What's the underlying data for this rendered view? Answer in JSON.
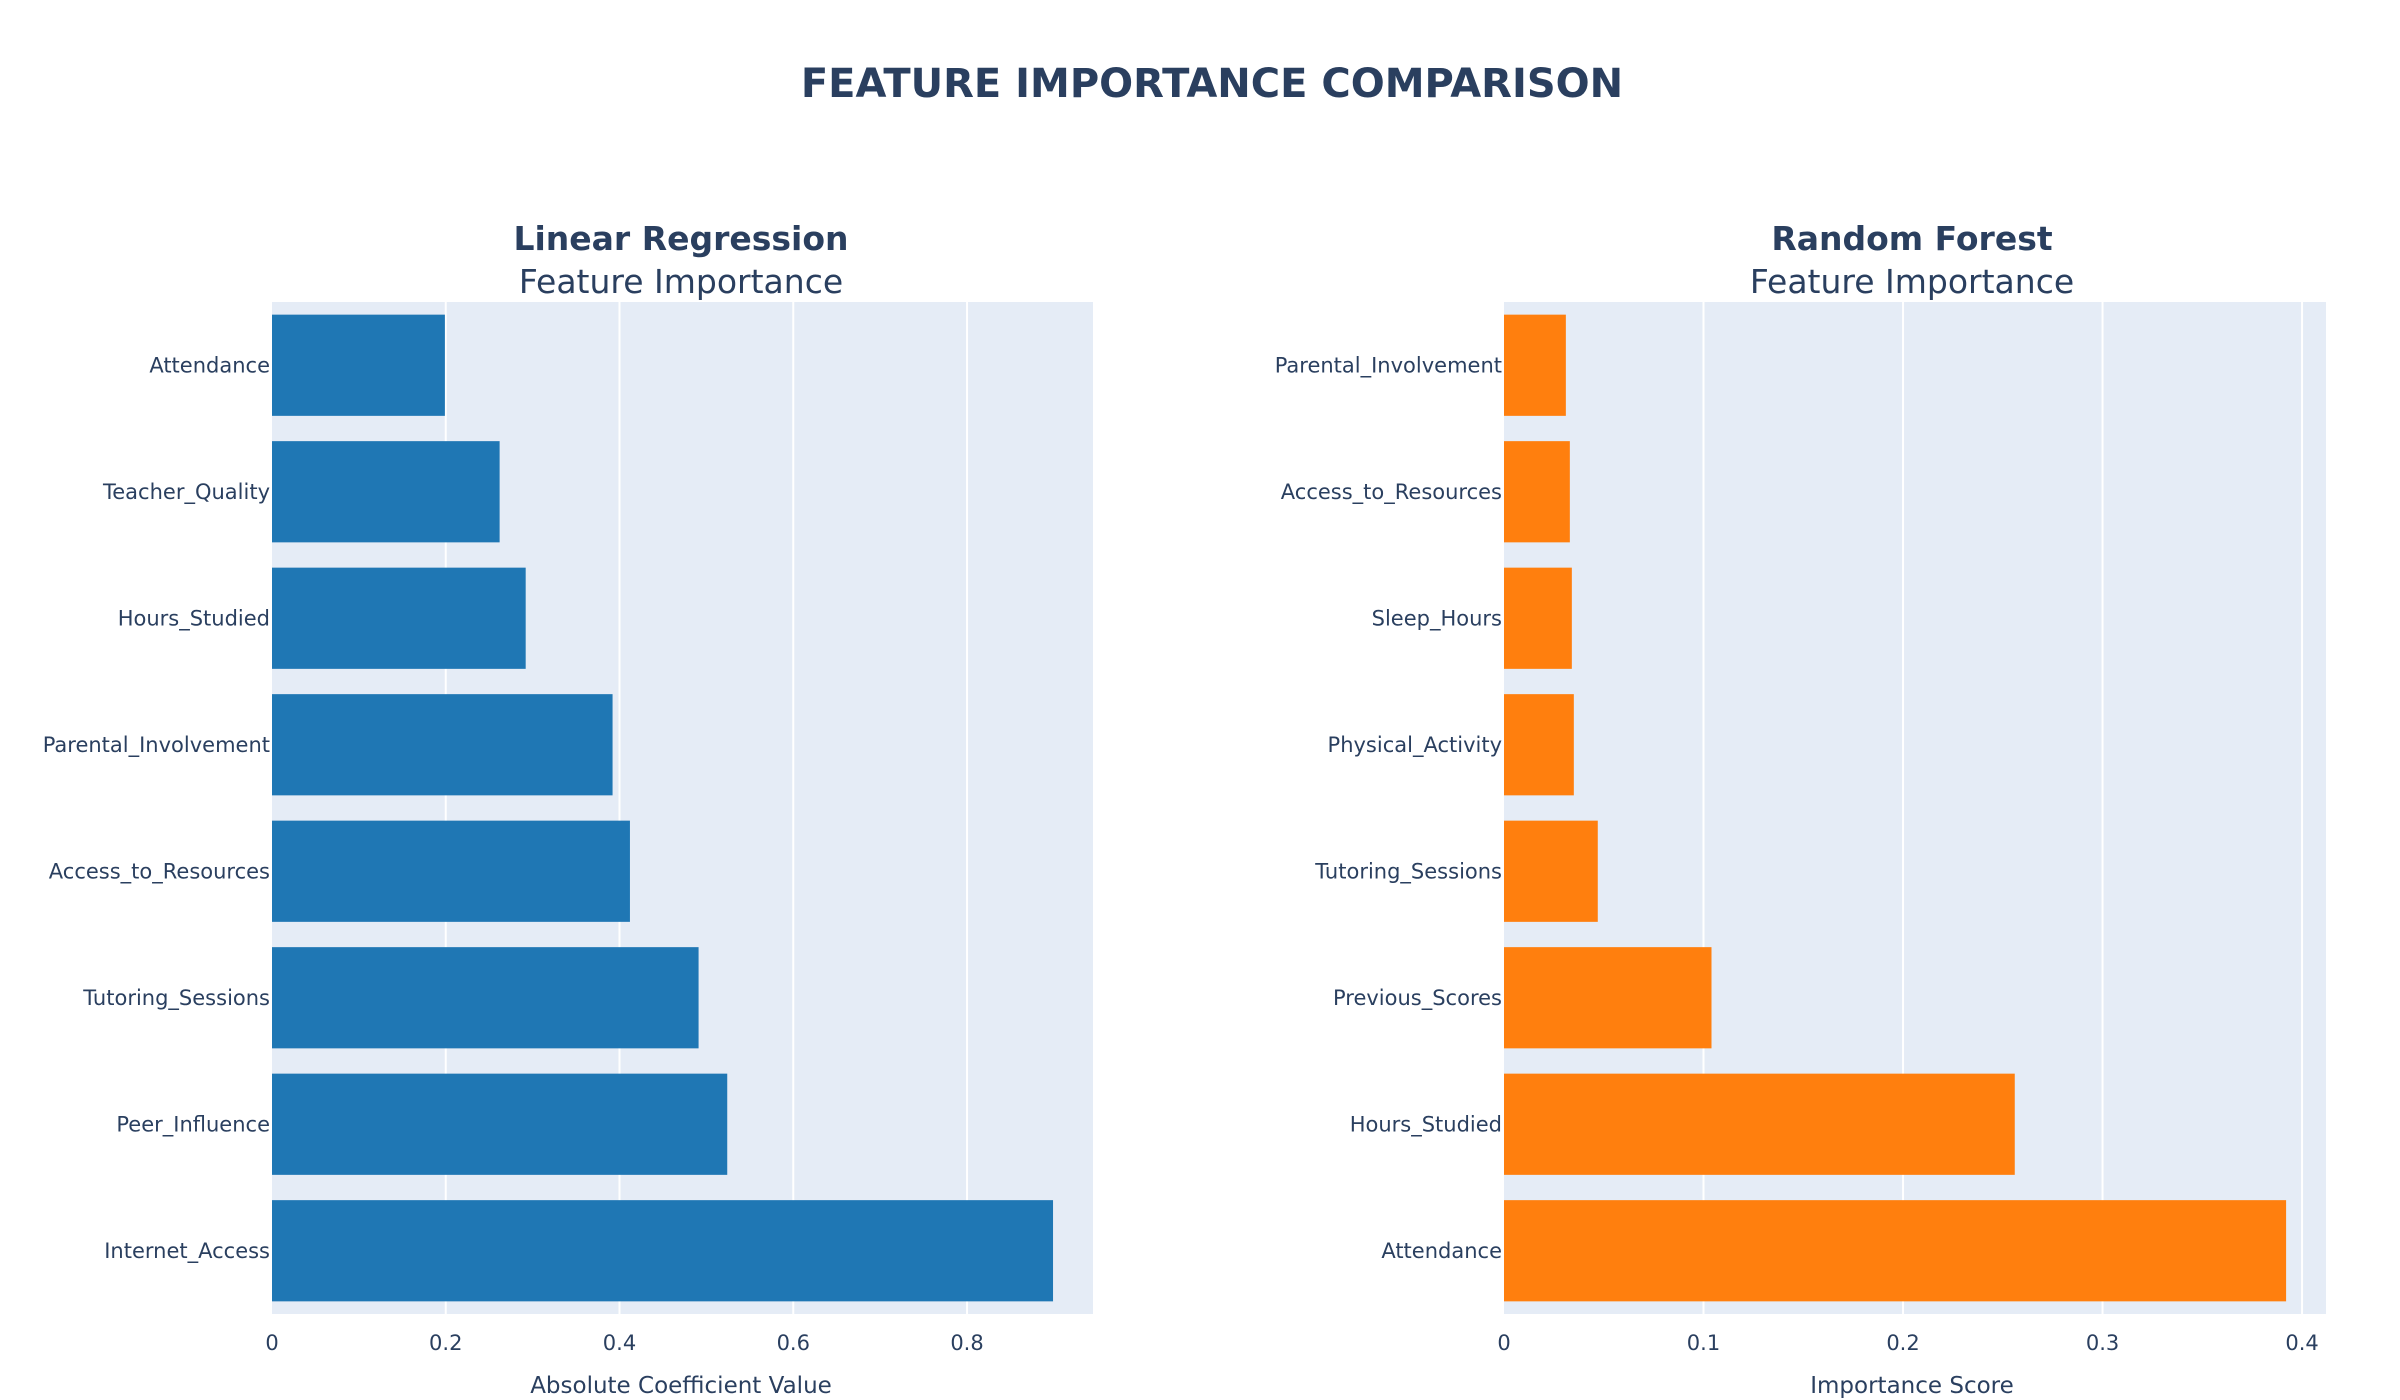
{
  "title": "FEATURE IMPORTANCE COMPARISON",
  "chart_data": [
    {
      "type": "bar",
      "orientation": "horizontal",
      "title": "Linear Regression",
      "subtitle": "Feature Importance",
      "xlabel": "Absolute Coefficient Value",
      "ylabel": "",
      "xlim": [
        0,
        0.945
      ],
      "xticks": [
        0,
        0.2,
        0.4,
        0.6,
        0.8
      ],
      "xtick_labels": [
        "0",
        "0.2",
        "0.4",
        "0.6",
        "0.8"
      ],
      "color": "#1f77b4",
      "grid": true,
      "categories": [
        "Attendance",
        "Teacher_Quality",
        "Hours_Studied",
        "Parental_Involvement",
        "Access_to_Resources",
        "Tutoring_Sessions",
        "Peer_Influence",
        "Internet_Access"
      ],
      "values": [
        0.199,
        0.262,
        0.292,
        0.392,
        0.412,
        0.491,
        0.524,
        0.899
      ]
    },
    {
      "type": "bar",
      "orientation": "horizontal",
      "title": "Random Forest",
      "subtitle": "Feature Importance",
      "xlabel": "Importance Score",
      "ylabel": "",
      "xlim": [
        0,
        0.412
      ],
      "xticks": [
        0,
        0.1,
        0.2,
        0.3,
        0.4
      ],
      "xtick_labels": [
        "0",
        "0.1",
        "0.2",
        "0.3",
        "0.4"
      ],
      "color": "#ff7f0e",
      "grid": true,
      "categories": [
        "Parental_Involvement",
        "Access_to_Resources",
        "Sleep_Hours",
        "Physical_Activity",
        "Tutoring_Sessions",
        "Previous_Scores",
        "Hours_Studied",
        "Attendance"
      ],
      "values": [
        0.031,
        0.033,
        0.034,
        0.035,
        0.047,
        0.104,
        0.256,
        0.392
      ]
    }
  ]
}
